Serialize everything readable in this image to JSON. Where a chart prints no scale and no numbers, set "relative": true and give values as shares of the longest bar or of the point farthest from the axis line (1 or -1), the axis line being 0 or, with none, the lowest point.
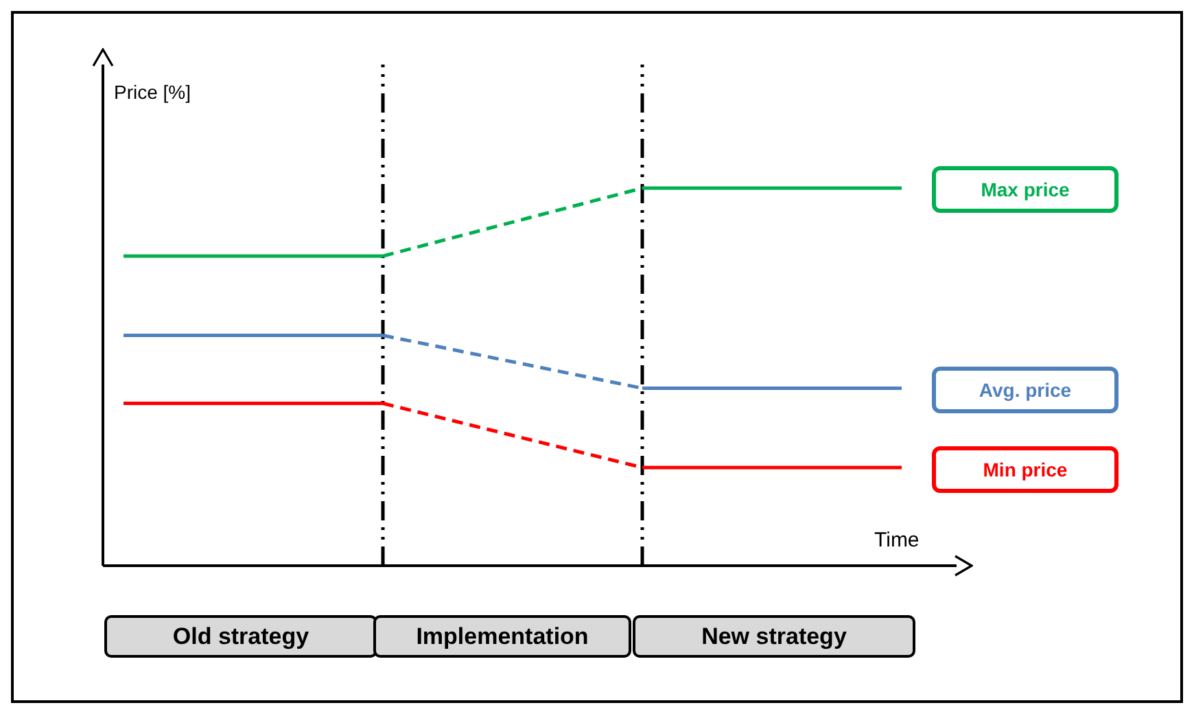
{
  "chart_data": {
    "type": "line",
    "relative": true,
    "xlabel": "Time",
    "ylabel": "Price [%]",
    "categories": [
      null,
      null,
      null,
      null
    ],
    "series": [
      {
        "color": "#00b050",
        "values": [
          0.82,
          0.82,
          null,
          null
        ],
        "line_style": "solid"
      },
      {
        "color": "#00b050",
        "values": [
          null,
          0.82,
          1,
          null
        ],
        "line_style": "dashed"
      },
      {
        "name": "Max price",
        "color": "#00b050",
        "values": [
          null,
          null,
          1,
          1
        ],
        "line_style": "solid"
      },
      {
        "color": "#4f81bd",
        "values": [
          0.61,
          0.61,
          null,
          null
        ],
        "line_style": "solid"
      },
      {
        "color": "#4f81bd",
        "values": [
          null,
          0.61,
          0.47,
          null
        ],
        "line_style": "dashed"
      },
      {
        "name": "Avg. price",
        "color": "#4f81bd",
        "values": [
          null,
          null,
          0.47,
          0.47
        ],
        "line_style": "solid"
      },
      {
        "color": "#ff0000",
        "values": [
          0.43,
          0.43,
          null,
          null
        ],
        "line_style": "solid"
      },
      {
        "color": "#ff0000",
        "values": [
          null,
          0.43,
          0.26,
          null
        ],
        "line_style": "dashed"
      },
      {
        "name": "Min price",
        "color": "#ff0000",
        "values": [
          null,
          null,
          0.26,
          0.26
        ],
        "line_style": "solid"
      }
    ],
    "annotations": [
      "Old strategy",
      "Implementation",
      "New strategy"
    ]
  }
}
